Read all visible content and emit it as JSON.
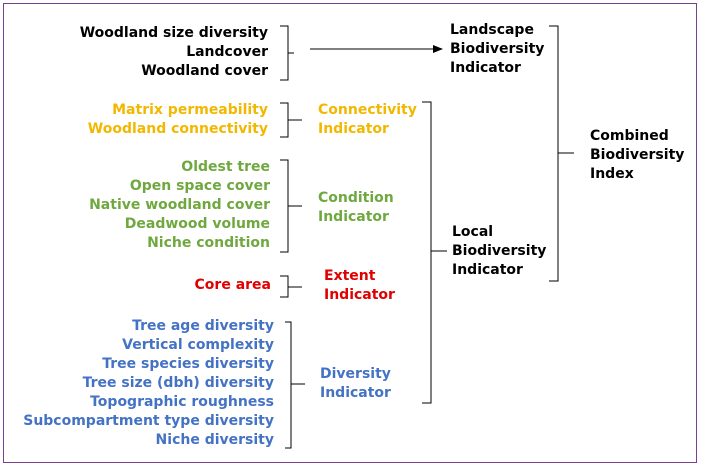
{
  "colors": {
    "black": "#000000",
    "yellow": "#f2b800",
    "green": "#70a840",
    "red": "#e00000",
    "blue": "#4472c4",
    "frame": "#7a3f8f"
  },
  "landscape_group": {
    "items": [
      "Woodland size diversity",
      "Landcover",
      "Woodland cover"
    ],
    "indicator": [
      "Landscape",
      "Biodiversity",
      "Indicator"
    ]
  },
  "connectivity_group": {
    "items": [
      "Matrix permeability",
      "Woodland connectivity"
    ],
    "indicator": [
      "Connectivity",
      "Indicator"
    ]
  },
  "condition_group": {
    "items": [
      "Oldest tree",
      "Open space cover",
      "Native woodland cover",
      "Deadwood volume",
      "Niche condition"
    ],
    "indicator": [
      "Condition",
      "Indicator"
    ]
  },
  "extent_group": {
    "items": [
      "Core area"
    ],
    "indicator": [
      "Extent",
      "Indicator"
    ]
  },
  "diversity_group": {
    "items": [
      "Tree age diversity",
      "Vertical complexity",
      "Tree species diversity",
      "Tree size (dbh) diversity",
      "Topographic roughness",
      "Subcompartment type diversity",
      "Niche diversity"
    ],
    "indicator": [
      "Diversity",
      "Indicator"
    ]
  },
  "local_indicator": [
    "Local",
    "Biodiversity",
    "Indicator"
  ],
  "combined_index": [
    "Combined",
    "Biodiversity",
    "Index"
  ]
}
